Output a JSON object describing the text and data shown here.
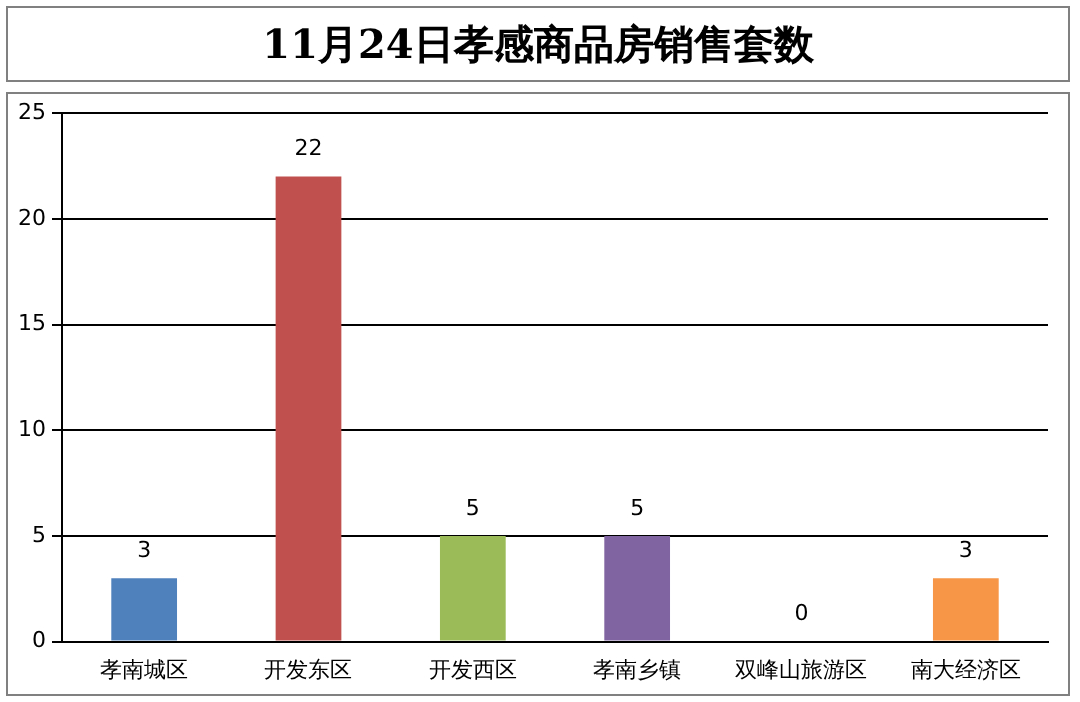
{
  "chart_data": {
    "type": "bar",
    "title": "11月24日孝感商品房销售套数",
    "categories": [
      "孝南城区",
      "开发东区",
      "开发西区",
      "孝南乡镇",
      "双峰山旅游区",
      "南大经济区"
    ],
    "values": [
      3,
      22,
      5,
      5,
      0,
      3
    ],
    "colors": [
      "#4f81bd",
      "#c0504d",
      "#9bbb59",
      "#8064a2",
      "#4bacc6",
      "#f79646"
    ],
    "ylim": [
      0,
      25
    ],
    "yticks": [
      0,
      5,
      10,
      15,
      20,
      25
    ],
    "grid": "y",
    "data_labels": true,
    "legend": false
  }
}
